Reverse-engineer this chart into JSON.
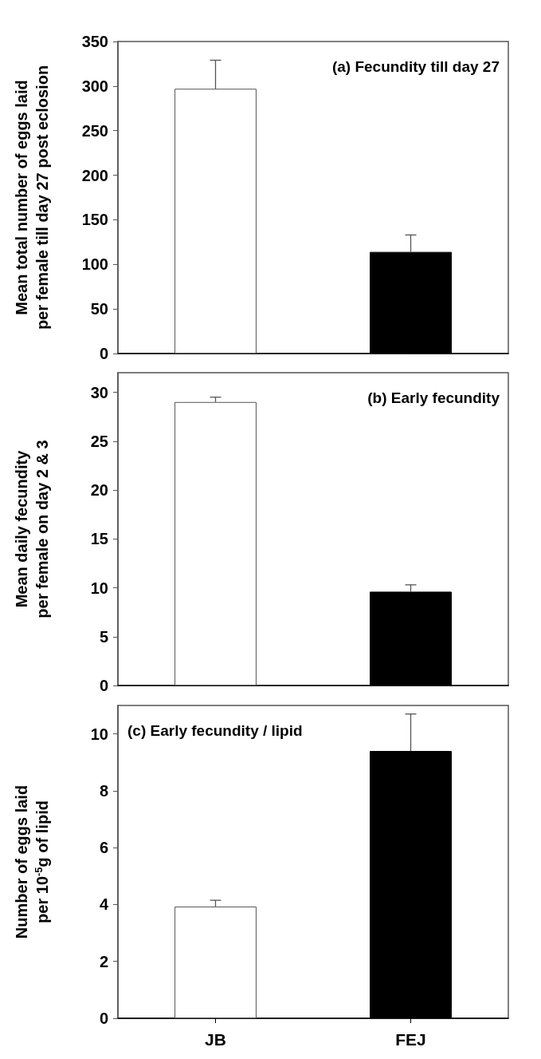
{
  "chart_data": [
    {
      "type": "bar",
      "ylabel": "Mean total number of eggs laid\nper female till day 27 post eclosion",
      "annotations": [
        "(a) Fecundity till day 27"
      ],
      "categories": [
        null,
        null
      ],
      "values": [
        297,
        114
      ],
      "colors": [
        "#ffffff",
        "#000000"
      ],
      "errors": [
        [
          297,
          329
        ],
        [
          114,
          133
        ]
      ],
      "ylim": [
        0,
        350
      ],
      "yticks": [
        0,
        50,
        100,
        150,
        200,
        250,
        300,
        350
      ],
      "grid": false,
      "tick_labels": "y"
    },
    {
      "type": "bar",
      "ylabel": "Mean daily fecundity\nper female on day 2 & 3",
      "annotations": [
        "(b) Early fecundity"
      ],
      "categories": [
        null,
        null
      ],
      "values": [
        29,
        9.6
      ],
      "colors": [
        "#ffffff",
        "#000000"
      ],
      "errors": [
        [
          29,
          29.5
        ],
        [
          9.6,
          10.3
        ]
      ],
      "ylim": [
        0,
        32
      ],
      "yticks": [
        0,
        5,
        10,
        15,
        20,
        25,
        30
      ],
      "grid": false,
      "tick_labels": "y"
    },
    {
      "type": "bar",
      "ylabel": "Number of eggs laid\nper 10$^{-5}$g of lipid",
      "annotations": [
        "(c) Early fecundity / lipid"
      ],
      "categories": [
        "JB",
        "FEJ"
      ],
      "values": [
        3.93,
        9.4
      ],
      "colors": [
        "#ffffff",
        "#000000"
      ],
      "errors": [
        [
          3.93,
          4.15
        ],
        [
          9.4,
          10.7
        ]
      ],
      "ylim": [
        0,
        11
      ],
      "yticks": [
        0,
        2,
        4,
        6,
        8,
        10
      ],
      "grid": false
    }
  ]
}
